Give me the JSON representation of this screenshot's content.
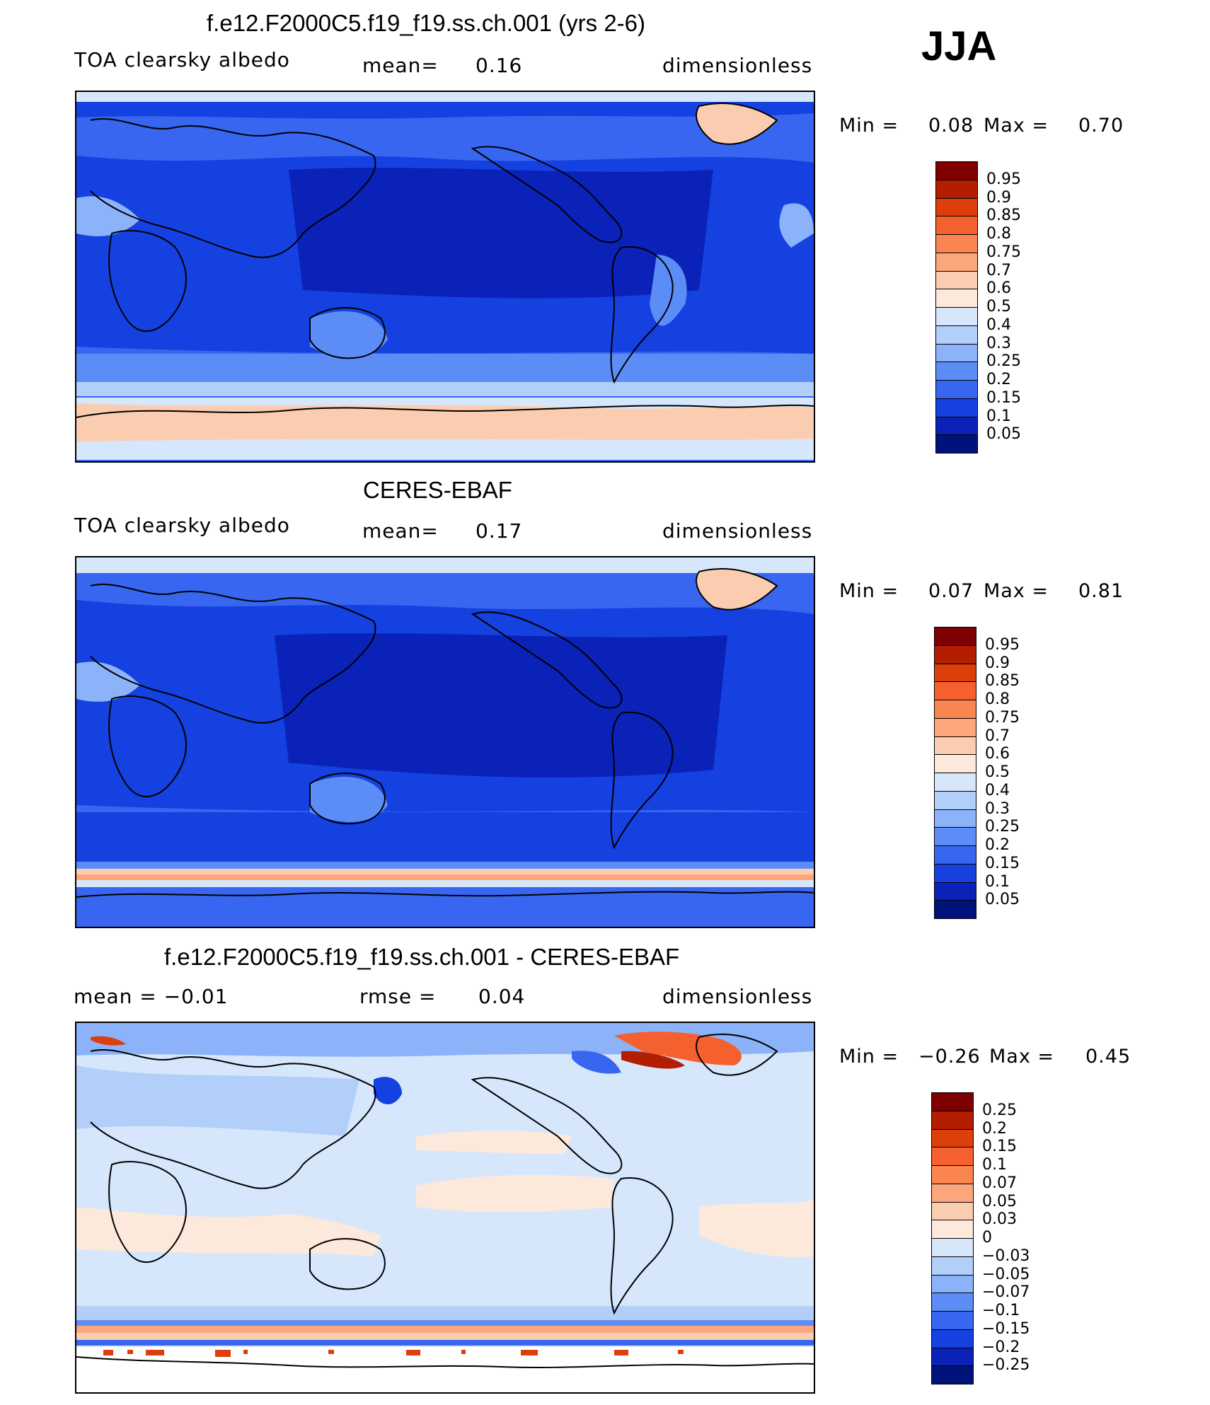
{
  "season": "JJA",
  "panels": [
    {
      "id": "model",
      "title": "f.e12.F2000C5.f19_f19.ss.ch.001 (yrs 2-6)",
      "left": "TOA clearsky albedo",
      "center_label": "mean=",
      "center_value": "0.16",
      "right": "dimensionless",
      "min_label": "Min =",
      "min_value": "0.08",
      "max_label": "Max =",
      "max_value": "0.70",
      "colorbar": {
        "levels": [
          "0.95",
          "0.9",
          "0.85",
          "0.8",
          "0.75",
          "0.7",
          "0.6",
          "0.5",
          "0.4",
          "0.3",
          "0.25",
          "0.2",
          "0.15",
          "0.1",
          "0.05"
        ],
        "colors": [
          "#7f0000",
          "#b31d00",
          "#dc3f0c",
          "#f5612e",
          "#fb8550",
          "#fca67c",
          "#fbcdb0",
          "#fde9dc",
          "#d6e7fb",
          "#b2cffa",
          "#8cb2fa",
          "#5c8df6",
          "#3866f0",
          "#1541e0",
          "#0a22b8",
          "#00137a"
        ]
      }
    },
    {
      "id": "obs",
      "title": "CERES-EBAF",
      "left": "TOA clearsky albedo",
      "center_label": "mean=",
      "center_value": "0.17",
      "right": "dimensionless",
      "min_label": "Min =",
      "min_value": "0.07",
      "max_label": "Max =",
      "max_value": "0.81",
      "colorbar": {
        "levels": [
          "0.95",
          "0.9",
          "0.85",
          "0.8",
          "0.75",
          "0.7",
          "0.6",
          "0.5",
          "0.4",
          "0.3",
          "0.25",
          "0.2",
          "0.15",
          "0.1",
          "0.05"
        ],
        "colors": [
          "#7f0000",
          "#b31d00",
          "#dc3f0c",
          "#f5612e",
          "#fb8550",
          "#fca67c",
          "#fbcdb0",
          "#fde9dc",
          "#d6e7fb",
          "#b2cffa",
          "#8cb2fa",
          "#5c8df6",
          "#3866f0",
          "#1541e0",
          "#0a22b8",
          "#00137a"
        ]
      }
    },
    {
      "id": "diff",
      "title": "f.e12.F2000C5.f19_f19.ss.ch.001 - CERES-EBAF",
      "left": "mean =   −0.01",
      "center_label": "rmse =",
      "center_value": "0.04",
      "right": "dimensionless",
      "min_label": "Min =",
      "min_value": "−0.26",
      "max_label": "Max =",
      "max_value": "0.45",
      "colorbar": {
        "levels": [
          "0.25",
          "0.2",
          "0.15",
          "0.1",
          "0.07",
          "0.05",
          "0.03",
          "0",
          "−0.03",
          "−0.05",
          "−0.07",
          "−0.1",
          "−0.15",
          "−0.2",
          "−0.25"
        ],
        "colors": [
          "#7f0000",
          "#b31d00",
          "#dc3f0c",
          "#f5612e",
          "#fb8550",
          "#fca67c",
          "#fbcdb0",
          "#fde9dc",
          "#d6e7fb",
          "#b2cffa",
          "#8cb2fa",
          "#5c8df6",
          "#3866f0",
          "#1541e0",
          "#0a22b8",
          "#00137a"
        ]
      }
    }
  ]
}
